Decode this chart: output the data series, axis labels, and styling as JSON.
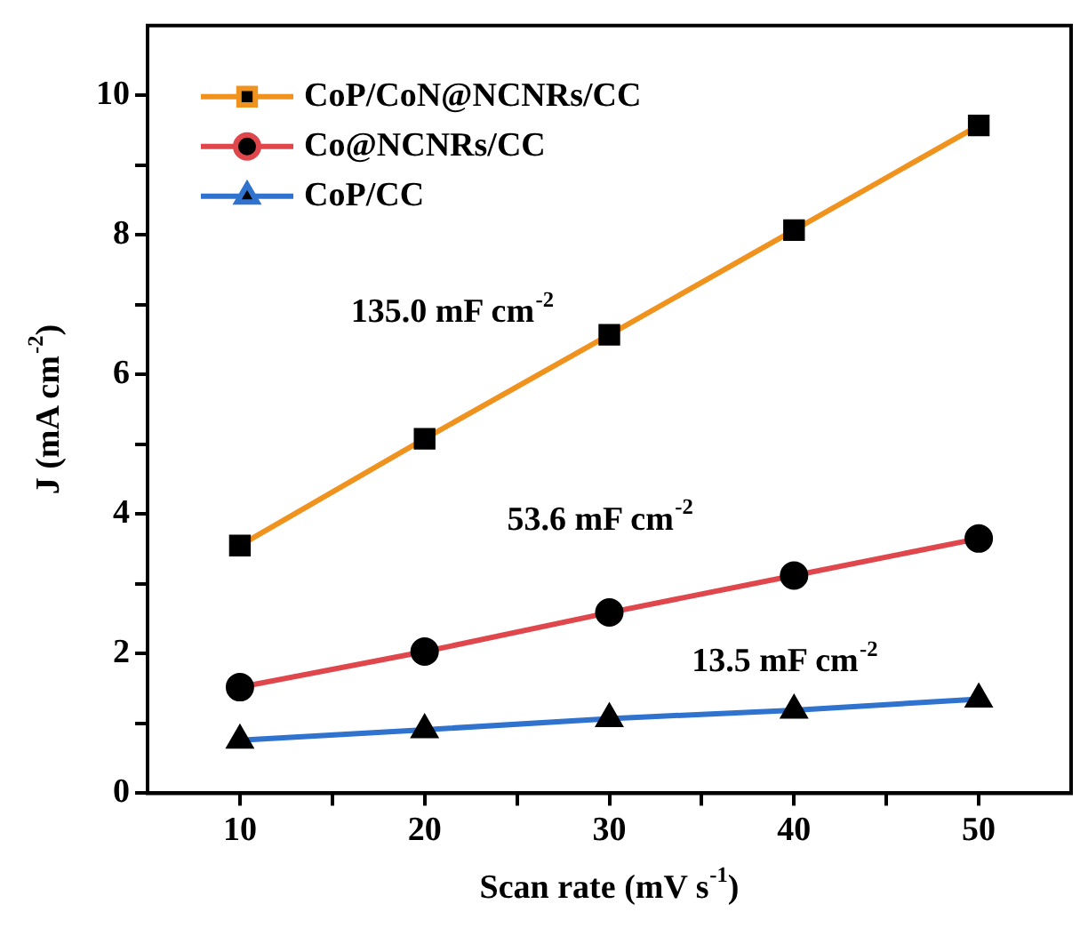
{
  "chart_data": {
    "type": "line",
    "xlabel": "Scan rate (mV s$^{-1}$)",
    "ylabel": "J (mA cm$^{-2}$)",
    "x": [
      10,
      20,
      30,
      40,
      50
    ],
    "series": [
      {
        "name": "CoP/CoN@NCNRs/CC",
        "color": "#f0921e",
        "marker": "square",
        "values": [
          3.55,
          5.08,
          6.57,
          8.07,
          9.57
        ]
      },
      {
        "name": "Co@NCNRs/CC",
        "color": "#e0474c",
        "marker": "circle",
        "values": [
          1.52,
          2.03,
          2.59,
          3.12,
          3.65
        ]
      },
      {
        "name": "CoP/CC",
        "color": "#2f73cf",
        "marker": "triangle",
        "values": [
          0.76,
          0.91,
          1.07,
          1.19,
          1.35
        ]
      }
    ],
    "xlim": [
      5,
      55
    ],
    "xticks": [
      10,
      {
        "value": 15,
        "label": null
      },
      20,
      {
        "value": 25,
        "label": null
      },
      30,
      {
        "value": 35,
        "label": null
      },
      40,
      {
        "value": 45,
        "label": null
      },
      50
    ],
    "ylim": [
      0,
      11
    ],
    "yticks": [
      0,
      {
        "value": 1,
        "label": null
      },
      2,
      {
        "value": 3,
        "label": null
      },
      4,
      {
        "value": 5,
        "label": null
      },
      6,
      {
        "value": 7,
        "label": null
      },
      8,
      {
        "value": 9,
        "label": null
      },
      10
    ],
    "grid": false,
    "legend": "top left",
    "line_style": "solid",
    "annotations": [
      "135.0 mF cm$^{-2}$",
      "53.6 mF cm$^{-2}$",
      "13.5 mF cm$^{-2}$"
    ]
  }
}
